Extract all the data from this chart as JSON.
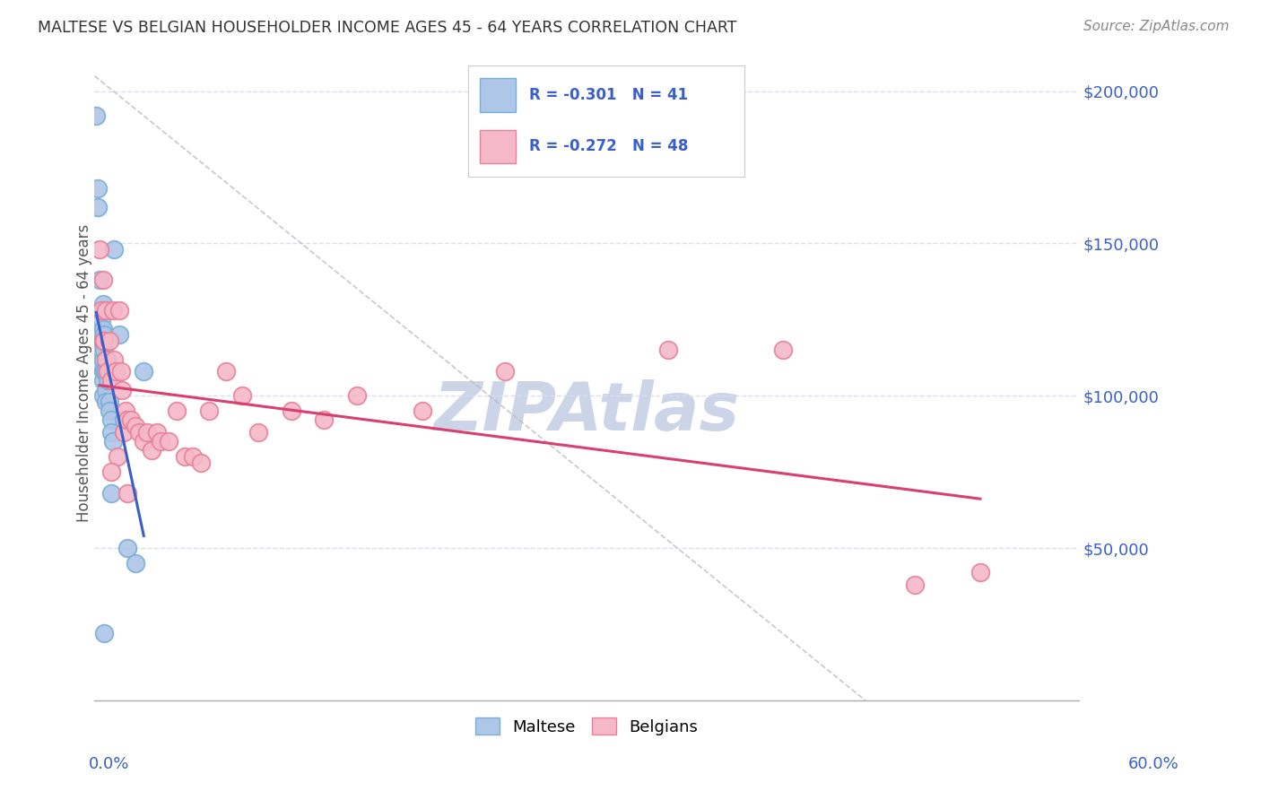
{
  "title": "MALTESE VS BELGIAN HOUSEHOLDER INCOME AGES 45 - 64 YEARS CORRELATION CHART",
  "source": "Source: ZipAtlas.com",
  "ylabel": "Householder Income Ages 45 - 64 years",
  "xlim": [
    0.0,
    0.6
  ],
  "ylim": [
    0,
    215000
  ],
  "maltese_color": "#aec6e8",
  "maltese_edge": "#7aafd4",
  "belgians_color": "#f5b8c8",
  "belgians_edge": "#e8809a",
  "trend_maltese_color": "#3a5fc8",
  "trend_belgians_color": "#d84070",
  "trend_dashed_color": "#bbbbbb",
  "watermark_color": "#ccd5e8",
  "title_color": "#333333",
  "source_color": "#888888",
  "legend_text_color": "#3a5fc8",
  "grid_color": "#d8dff0",
  "bg_color": "#ffffff",
  "maltese_x": [
    0.001,
    0.002,
    0.002,
    0.003,
    0.003,
    0.003,
    0.004,
    0.004,
    0.004,
    0.004,
    0.004,
    0.005,
    0.005,
    0.005,
    0.005,
    0.005,
    0.005,
    0.005,
    0.006,
    0.006,
    0.006,
    0.006,
    0.007,
    0.007,
    0.007,
    0.007,
    0.008,
    0.008,
    0.009,
    0.009,
    0.01,
    0.01,
    0.011,
    0.012,
    0.015,
    0.018,
    0.02,
    0.025,
    0.03,
    0.01,
    0.006
  ],
  "maltese_y": [
    192000,
    168000,
    162000,
    138000,
    128000,
    122000,
    125000,
    120000,
    118000,
    115000,
    110000,
    130000,
    122000,
    118000,
    112000,
    108000,
    105000,
    100000,
    128000,
    120000,
    115000,
    108000,
    112000,
    108000,
    102000,
    98000,
    112000,
    105000,
    98000,
    95000,
    92000,
    88000,
    85000,
    148000,
    120000,
    92000,
    50000,
    45000,
    108000,
    68000,
    22000
  ],
  "belgians_x": [
    0.003,
    0.004,
    0.005,
    0.005,
    0.006,
    0.007,
    0.007,
    0.008,
    0.009,
    0.01,
    0.011,
    0.012,
    0.013,
    0.014,
    0.015,
    0.016,
    0.017,
    0.018,
    0.019,
    0.02,
    0.022,
    0.025,
    0.027,
    0.03,
    0.032,
    0.035,
    0.038,
    0.04,
    0.045,
    0.05,
    0.055,
    0.06,
    0.065,
    0.07,
    0.08,
    0.09,
    0.1,
    0.12,
    0.14,
    0.16,
    0.2,
    0.25,
    0.35,
    0.42,
    0.5,
    0.54,
    0.01,
    0.02
  ],
  "belgians_y": [
    148000,
    128000,
    138000,
    118000,
    118000,
    128000,
    112000,
    108000,
    118000,
    105000,
    128000,
    112000,
    108000,
    80000,
    128000,
    108000,
    102000,
    88000,
    95000,
    92000,
    92000,
    90000,
    88000,
    85000,
    88000,
    82000,
    88000,
    85000,
    85000,
    95000,
    80000,
    80000,
    78000,
    95000,
    108000,
    100000,
    88000,
    95000,
    92000,
    100000,
    95000,
    108000,
    115000,
    115000,
    38000,
    42000,
    75000,
    68000
  ],
  "ytick_vals": [
    0,
    50000,
    100000,
    150000,
    200000
  ],
  "ytick_labels": [
    "",
    "$50,000",
    "$100,000",
    "$150,000",
    "$200,000"
  ]
}
